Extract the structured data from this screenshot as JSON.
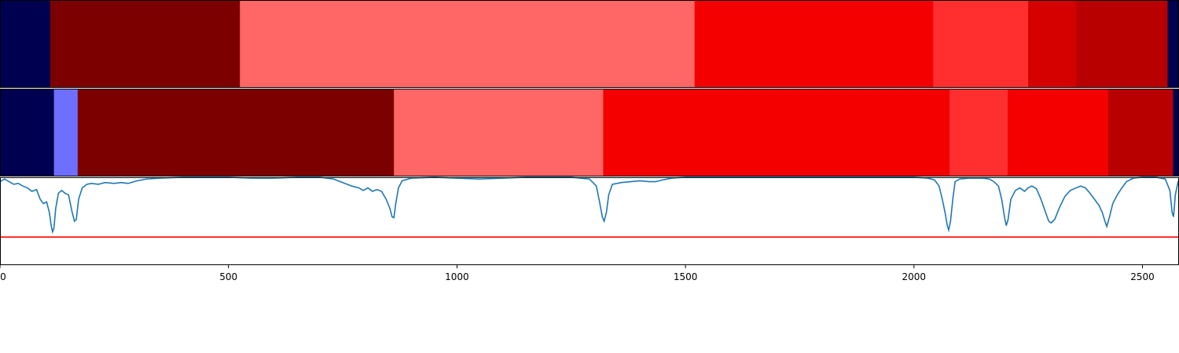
{
  "chart_data": {
    "type": "heatmap",
    "xlim": [
      0,
      2580
    ],
    "x_ticks": [
      "0",
      "500",
      "1000",
      "1500",
      "2000",
      "2500"
    ],
    "x_tick_values": [
      0,
      500,
      1000,
      1500,
      2000,
      2500
    ],
    "segmentation_rows": [
      {
        "segments": [
          {
            "start": 0,
            "end": 110,
            "color": "#000050"
          },
          {
            "start": 110,
            "end": 525,
            "color": "#7d0000"
          },
          {
            "start": 525,
            "end": 1520,
            "color": "#ff6666"
          },
          {
            "start": 1520,
            "end": 2042,
            "color": "#f50000"
          },
          {
            "start": 2042,
            "end": 2250,
            "color": "#ff2f2f"
          },
          {
            "start": 2250,
            "end": 2355,
            "color": "#d50000"
          },
          {
            "start": 2355,
            "end": 2555,
            "color": "#b80000"
          },
          {
            "start": 2555,
            "end": 2580,
            "color": "#000050"
          }
        ]
      },
      {
        "segments": [
          {
            "start": 0,
            "end": 118,
            "color": "#000050"
          },
          {
            "start": 118,
            "end": 170,
            "color": "#6e6eff"
          },
          {
            "start": 170,
            "end": 862,
            "color": "#7d0000"
          },
          {
            "start": 862,
            "end": 1320,
            "color": "#ff6666"
          },
          {
            "start": 1320,
            "end": 2078,
            "color": "#f50000"
          },
          {
            "start": 2078,
            "end": 2205,
            "color": "#ff2f2f"
          },
          {
            "start": 2205,
            "end": 2425,
            "color": "#f50000"
          },
          {
            "start": 2425,
            "end": 2567,
            "color": "#b80000"
          },
          {
            "start": 2567,
            "end": 2580,
            "color": "#000050"
          }
        ]
      }
    ],
    "line_panel": {
      "ylim": [
        -1.0,
        0.0
      ],
      "line_color": "#1f77b4",
      "threshold_color": "#ff0000",
      "threshold": -0.68,
      "points": [
        [
          0,
          -0.05
        ],
        [
          10,
          -0.02
        ],
        [
          20,
          -0.05
        ],
        [
          30,
          -0.08
        ],
        [
          40,
          -0.07
        ],
        [
          50,
          -0.1
        ],
        [
          60,
          -0.12
        ],
        [
          70,
          -0.16
        ],
        [
          80,
          -0.14
        ],
        [
          88,
          -0.25
        ],
        [
          95,
          -0.3
        ],
        [
          102,
          -0.28
        ],
        [
          108,
          -0.4
        ],
        [
          112,
          -0.55
        ],
        [
          115,
          -0.62
        ],
        [
          118,
          -0.58
        ],
        [
          122,
          -0.35
        ],
        [
          128,
          -0.18
        ],
        [
          135,
          -0.15
        ],
        [
          142,
          -0.18
        ],
        [
          150,
          -0.2
        ],
        [
          158,
          -0.4
        ],
        [
          163,
          -0.5
        ],
        [
          167,
          -0.48
        ],
        [
          172,
          -0.25
        ],
        [
          180,
          -0.12
        ],
        [
          190,
          -0.08
        ],
        [
          200,
          -0.07
        ],
        [
          215,
          -0.08
        ],
        [
          230,
          -0.06
        ],
        [
          250,
          -0.07
        ],
        [
          265,
          -0.06
        ],
        [
          280,
          -0.07
        ],
        [
          300,
          -0.04
        ],
        [
          320,
          -0.02
        ],
        [
          350,
          -0.01
        ],
        [
          400,
          0.0
        ],
        [
          450,
          0.0
        ],
        [
          500,
          0.0
        ],
        [
          550,
          -0.01
        ],
        [
          600,
          -0.01
        ],
        [
          650,
          0.0
        ],
        [
          700,
          0.0
        ],
        [
          730,
          -0.02
        ],
        [
          750,
          -0.06
        ],
        [
          770,
          -0.1
        ],
        [
          785,
          -0.12
        ],
        [
          795,
          -0.15
        ],
        [
          805,
          -0.12
        ],
        [
          815,
          -0.16
        ],
        [
          825,
          -0.14
        ],
        [
          835,
          -0.16
        ],
        [
          845,
          -0.25
        ],
        [
          853,
          -0.35
        ],
        [
          858,
          -0.45
        ],
        [
          862,
          -0.46
        ],
        [
          866,
          -0.3
        ],
        [
          872,
          -0.12
        ],
        [
          880,
          -0.04
        ],
        [
          900,
          -0.01
        ],
        [
          950,
          0.0
        ],
        [
          1000,
          -0.01
        ],
        [
          1050,
          -0.02
        ],
        [
          1100,
          -0.01
        ],
        [
          1150,
          0.0
        ],
        [
          1200,
          0.0
        ],
        [
          1250,
          0.0
        ],
        [
          1290,
          -0.02
        ],
        [
          1305,
          -0.1
        ],
        [
          1312,
          -0.28
        ],
        [
          1318,
          -0.45
        ],
        [
          1322,
          -0.5
        ],
        [
          1327,
          -0.4
        ],
        [
          1332,
          -0.2
        ],
        [
          1340,
          -0.08
        ],
        [
          1360,
          -0.06
        ],
        [
          1380,
          -0.05
        ],
        [
          1400,
          -0.04
        ],
        [
          1420,
          -0.05
        ],
        [
          1435,
          -0.05
        ],
        [
          1450,
          -0.03
        ],
        [
          1470,
          -0.01
        ],
        [
          1500,
          0.0
        ],
        [
          1600,
          0.0
        ],
        [
          1700,
          0.0
        ],
        [
          1800,
          0.0
        ],
        [
          1900,
          0.0
        ],
        [
          2000,
          0.0
        ],
        [
          2030,
          -0.01
        ],
        [
          2045,
          -0.03
        ],
        [
          2055,
          -0.1
        ],
        [
          2062,
          -0.25
        ],
        [
          2068,
          -0.4
        ],
        [
          2073,
          -0.55
        ],
        [
          2076,
          -0.6
        ],
        [
          2080,
          -0.5
        ],
        [
          2085,
          -0.25
        ],
        [
          2090,
          -0.05
        ],
        [
          2100,
          -0.02
        ],
        [
          2120,
          -0.01
        ],
        [
          2150,
          -0.01
        ],
        [
          2165,
          -0.02
        ],
        [
          2175,
          -0.05
        ],
        [
          2185,
          -0.1
        ],
        [
          2192,
          -0.25
        ],
        [
          2198,
          -0.45
        ],
        [
          2202,
          -0.55
        ],
        [
          2206,
          -0.48
        ],
        [
          2212,
          -0.25
        ],
        [
          2222,
          -0.15
        ],
        [
          2232,
          -0.12
        ],
        [
          2242,
          -0.16
        ],
        [
          2250,
          -0.12
        ],
        [
          2258,
          -0.1
        ],
        [
          2268,
          -0.13
        ],
        [
          2278,
          -0.25
        ],
        [
          2288,
          -0.4
        ],
        [
          2295,
          -0.5
        ],
        [
          2300,
          -0.52
        ],
        [
          2308,
          -0.48
        ],
        [
          2318,
          -0.35
        ],
        [
          2330,
          -0.22
        ],
        [
          2342,
          -0.15
        ],
        [
          2355,
          -0.12
        ],
        [
          2365,
          -0.1
        ],
        [
          2375,
          -0.12
        ],
        [
          2385,
          -0.18
        ],
        [
          2395,
          -0.25
        ],
        [
          2405,
          -0.32
        ],
        [
          2412,
          -0.4
        ],
        [
          2418,
          -0.5
        ],
        [
          2422,
          -0.56
        ],
        [
          2428,
          -0.45
        ],
        [
          2435,
          -0.3
        ],
        [
          2445,
          -0.2
        ],
        [
          2455,
          -0.12
        ],
        [
          2465,
          -0.05
        ],
        [
          2480,
          -0.01
        ],
        [
          2500,
          0.0
        ],
        [
          2530,
          0.0
        ],
        [
          2550,
          -0.02
        ],
        [
          2560,
          -0.15
        ],
        [
          2565,
          -0.4
        ],
        [
          2568,
          -0.45
        ],
        [
          2572,
          -0.2
        ],
        [
          2578,
          -0.05
        ],
        [
          2580,
          -0.03
        ]
      ]
    }
  }
}
